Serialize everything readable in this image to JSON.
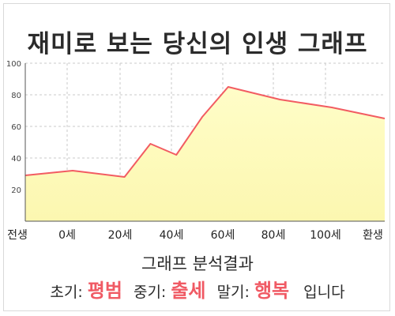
{
  "title": "재미로 보는 당신의 인생 그래프",
  "chart_data": {
    "type": "area",
    "x_labels": [
      "전생",
      "0세",
      "20세",
      "40세",
      "60세",
      "80세",
      "100세",
      "환생"
    ],
    "y_ticks": [
      20,
      40,
      60,
      80,
      100
    ],
    "ylim": [
      0,
      100
    ],
    "points": [
      {
        "x": "전생",
        "y": 29
      },
      {
        "x": "0세",
        "y": 32
      },
      {
        "x": "20세",
        "y": 28
      },
      {
        "x": "30세",
        "y": 49
      },
      {
        "x": "40세",
        "y": 42
      },
      {
        "x": "50세",
        "y": 66
      },
      {
        "x": "60세",
        "y": 85
      },
      {
        "x": "70세",
        "y": 81
      },
      {
        "x": "80세",
        "y": 77
      },
      {
        "x": "100세",
        "y": 72
      },
      {
        "x": "환생",
        "y": 65
      }
    ],
    "colors": {
      "fill": "#fffdc8",
      "fill_bottom": "#fcf7b0",
      "line": "#f25c62",
      "grid": "#c8c8c8",
      "axis": "#555555"
    },
    "grid": true
  },
  "analysis": {
    "heading": "그래프 분석결과",
    "early_label": "초기:",
    "early_value": "평범",
    "middle_label": "중기:",
    "middle_value": "출세",
    "late_label": "말기:",
    "late_value": "행복",
    "suffix": "입니다"
  }
}
